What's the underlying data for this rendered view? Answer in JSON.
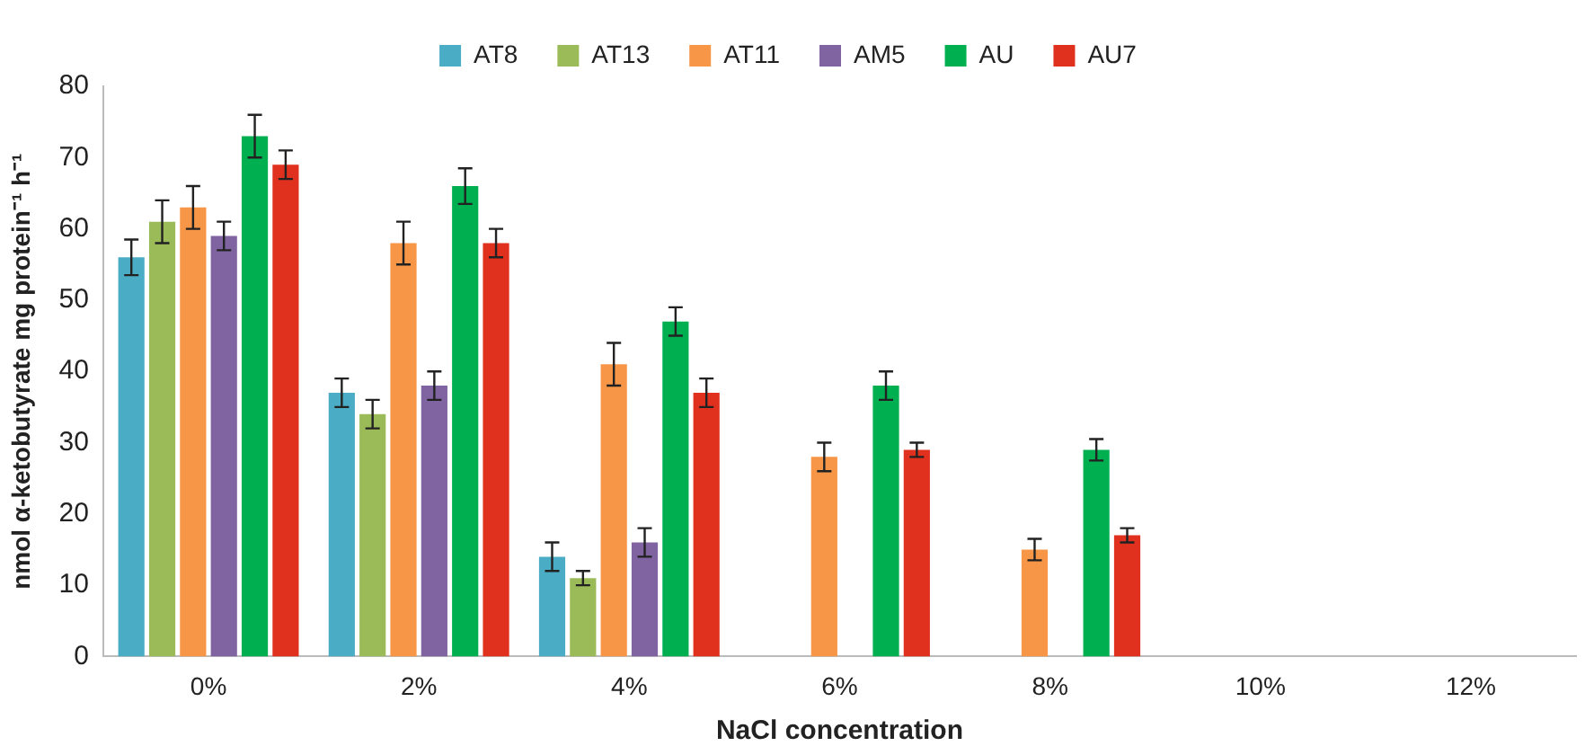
{
  "chart_data": {
    "type": "bar",
    "xlabel": "NaCl concentration",
    "ylabel": "nmol α-ketobutyrate mg protein⁻¹ h⁻¹",
    "categories": [
      "0%",
      "2%",
      "4%",
      "6%",
      "8%",
      "10%",
      "12%"
    ],
    "series": [
      {
        "name": "AT8",
        "color": "#4bacc6",
        "values": [
          56,
          37,
          14,
          null,
          null,
          null,
          null
        ],
        "errors": [
          2.5,
          2,
          2,
          null,
          null,
          null,
          null
        ]
      },
      {
        "name": "AT13",
        "color": "#9bbb59",
        "values": [
          61,
          34,
          11,
          null,
          null,
          null,
          null
        ],
        "errors": [
          3,
          2,
          1,
          null,
          null,
          null,
          null
        ]
      },
      {
        "name": "AT11",
        "color": "#f79646",
        "values": [
          63,
          58,
          41,
          28,
          15,
          null,
          null
        ],
        "errors": [
          3,
          3,
          3,
          2,
          1.5,
          null,
          null
        ]
      },
      {
        "name": "AM5",
        "color": "#8064a2",
        "values": [
          59,
          38,
          16,
          null,
          null,
          null,
          null
        ],
        "errors": [
          2,
          2,
          2,
          null,
          null,
          null,
          null
        ]
      },
      {
        "name": "AU",
        "color": "#00b050",
        "values": [
          73,
          66,
          47,
          38,
          29,
          null,
          null
        ],
        "errors": [
          3,
          2.5,
          2,
          2,
          1.5,
          null,
          null
        ]
      },
      {
        "name": "AU7",
        "color": "#e0301e",
        "values": [
          69,
          58,
          37,
          29,
          17,
          null,
          null
        ],
        "errors": [
          2,
          2,
          2,
          1,
          1,
          null,
          null
        ]
      }
    ],
    "ylim": [
      0,
      80
    ],
    "yticks": [
      0,
      10,
      20,
      30,
      40,
      50,
      60,
      70,
      80
    ],
    "grid": false,
    "legend": "top"
  }
}
